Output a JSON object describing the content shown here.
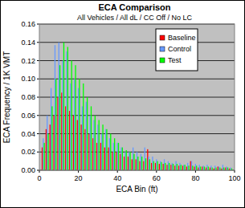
{
  "chart_data": {
    "type": "bar",
    "title": "ECA Comparison",
    "subtitle": "All Vehicles / All dL / CC Off / No LC",
    "x_label": "ECA Bin (ft)",
    "y_label": "ECA Frequency / 1K VMT",
    "x": [
      2,
      4,
      6,
      8,
      10,
      12,
      14,
      16,
      18,
      20,
      22,
      24,
      26,
      28,
      30,
      32,
      34,
      36,
      38,
      40,
      42,
      44,
      46,
      48,
      50,
      52,
      54,
      56,
      58,
      60,
      62,
      64,
      66,
      68,
      70,
      72,
      74,
      76,
      78,
      80,
      82,
      84,
      86,
      88,
      90,
      92,
      94,
      96,
      98
    ],
    "series": [
      {
        "name": "Baseline",
        "color": "#ff0000",
        "values": [
          0.025,
          0.045,
          0.05,
          0.06,
          0.08,
          0.085,
          0.07,
          0.065,
          0.06,
          0.055,
          0.05,
          0.045,
          0.04,
          0.035,
          0.03,
          0.03,
          0.025,
          0.025,
          0.02,
          0.02,
          0.018,
          0.015,
          0.015,
          0.012,
          0.012,
          0.01,
          0.01,
          0.023,
          0.008,
          0.008,
          0.007,
          0.007,
          0.006,
          0.006,
          0.005,
          0.005,
          0.005,
          0.004,
          0.01,
          0.004,
          0.003,
          0.004,
          0.003,
          0.003,
          0.002,
          0.004,
          0.002,
          0.003,
          0.002
        ]
      },
      {
        "name": "Control",
        "color": "#6699ff",
        "values": [
          0.035,
          0.06,
          0.09,
          0.137,
          0.14,
          0.12,
          0.13,
          0.095,
          0.1,
          0.09,
          0.07,
          0.075,
          0.06,
          0.055,
          0.05,
          0.04,
          0.045,
          0.035,
          0.03,
          0.03,
          0.025,
          0.02,
          0.02,
          0.025,
          0.02,
          0.018,
          0.025,
          0.015,
          0.015,
          0.012,
          0.01,
          0.012,
          0.01,
          0.008,
          0.01,
          0.008,
          0.006,
          0.008,
          0.01,
          0.007,
          0.006,
          0.005,
          0.006,
          0.005,
          0.005,
          0.004,
          0.006,
          0.004,
          0.003
        ]
      },
      {
        "name": "Test",
        "color": "#00ff00",
        "values": [
          0.03,
          0.04,
          0.07,
          0.1,
          0.115,
          0.14,
          0.135,
          0.12,
          0.115,
          0.1,
          0.095,
          0.08,
          0.07,
          0.06,
          0.055,
          0.05,
          0.045,
          0.04,
          0.035,
          0.03,
          0.025,
          0.022,
          0.02,
          0.018,
          0.015,
          0.015,
          0.013,
          0.012,
          0.01,
          0.01,
          0.009,
          0.008,
          0.008,
          0.007,
          0.007,
          0.006,
          0.006,
          0.005,
          0.005,
          0.005,
          0.004,
          0.004,
          0.004,
          0.003,
          0.003,
          0.003,
          0.003,
          0.003,
          0.002
        ]
      }
    ],
    "xlim": [
      0,
      100
    ],
    "xticks": [
      0,
      20,
      40,
      60,
      80,
      100
    ],
    "ylim": [
      0,
      0.16
    ],
    "yticks": [
      {
        "value": 0,
        "label": "0.00"
      },
      {
        "value": 0.02,
        "label": "0.02"
      },
      {
        "value": 0.04,
        "label": "0.04"
      },
      {
        "value": 0.06,
        "label": "0.06"
      },
      {
        "value": 0.08,
        "label": "0.08"
      },
      {
        "value": 0.1,
        "label": "0.10"
      },
      {
        "value": 0.12,
        "label": "0.12"
      },
      {
        "value": 0.14,
        "label": "0.14"
      },
      {
        "value": 0.16,
        "label": "0.16"
      }
    ],
    "grid": true,
    "legend": "upper right"
  }
}
